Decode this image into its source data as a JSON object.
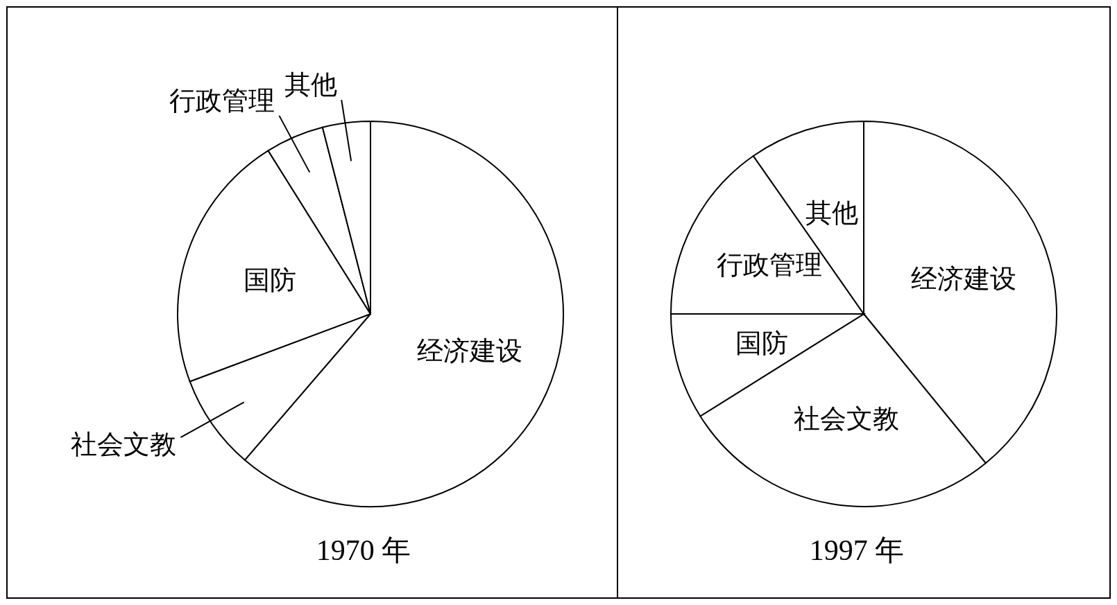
{
  "chart_data": [
    {
      "type": "pie",
      "title": "1970 年",
      "categories": [
        "经济建设",
        "社会文教",
        "国防",
        "行政管理",
        "其他"
      ],
      "values": [
        61.3,
        8.0,
        21.8,
        4.9,
        4.0
      ],
      "colors": [
        "#ffffff",
        "#ffffff",
        "#ffffff",
        "#ffffff",
        "#ffffff"
      ]
    },
    {
      "type": "pie",
      "title": "1997 年",
      "categories": [
        "经济建设",
        "社会文教",
        "国防",
        "行政管理",
        "其他"
      ],
      "values": [
        39.1,
        27.0,
        8.9,
        15.3,
        9.7
      ],
      "colors": [
        "#ffffff",
        "#ffffff",
        "#ffffff",
        "#ffffff",
        "#ffffff"
      ]
    }
  ]
}
